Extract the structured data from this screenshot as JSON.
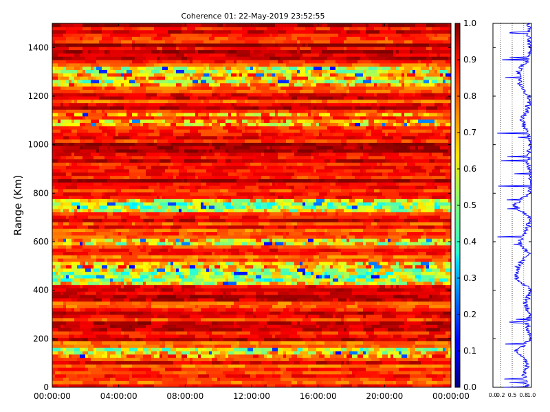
{
  "chart_data": [
    {
      "type": "heatmap",
      "title": "Coherence 01: 22-May-2019 23:52:55",
      "ylabel": "Range (Km)",
      "xlabel": "",
      "xlim": [
        "00:00:00",
        "24:00:00"
      ],
      "ylim": [
        0,
        1500
      ],
      "x_ticks": [
        "00:00:00",
        "04:00:00",
        "08:00:00",
        "12:00:00",
        "16:00:00",
        "20:00:00",
        "00:00:00"
      ],
      "y_ticks": [
        0,
        200,
        400,
        600,
        800,
        1000,
        1200,
        1400
      ],
      "colorscale": "jet",
      "colorbar": {
        "range": [
          0,
          1
        ],
        "ticks": [
          "0.0",
          "0.1",
          "0.2",
          "0.3",
          "0.4",
          "0.5",
          "0.6",
          "0.7",
          "0.8",
          "0.9",
          "1.0"
        ]
      },
      "range_profile_coherence": {
        "range_km": [
          0,
          50,
          100,
          150,
          200,
          250,
          300,
          350,
          400,
          450,
          500,
          550,
          600,
          650,
          700,
          750,
          800,
          850,
          900,
          950,
          1000,
          1050,
          1100,
          1150,
          1200,
          1250,
          1300,
          1350,
          1400,
          1450,
          1500
        ],
        "values": [
          0.85,
          0.75,
          0.85,
          0.55,
          0.95,
          0.85,
          0.9,
          0.8,
          0.95,
          0.55,
          0.6,
          0.88,
          0.62,
          0.85,
          0.9,
          0.5,
          0.9,
          0.95,
          0.9,
          0.85,
          0.95,
          0.85,
          0.7,
          0.85,
          0.9,
          0.65,
          0.6,
          0.85,
          0.95,
          0.85,
          0.9
        ]
      }
    },
    {
      "type": "line",
      "title": "",
      "xlabel": "",
      "ylabel": "",
      "xlim": [
        0,
        1
      ],
      "ylim": [
        0,
        1500
      ],
      "x_ticks": [
        "0.0",
        "0.2",
        "0.5",
        "0.8",
        "1.0"
      ],
      "grid": "vertical dotted",
      "color": "#0000ff"
    }
  ]
}
